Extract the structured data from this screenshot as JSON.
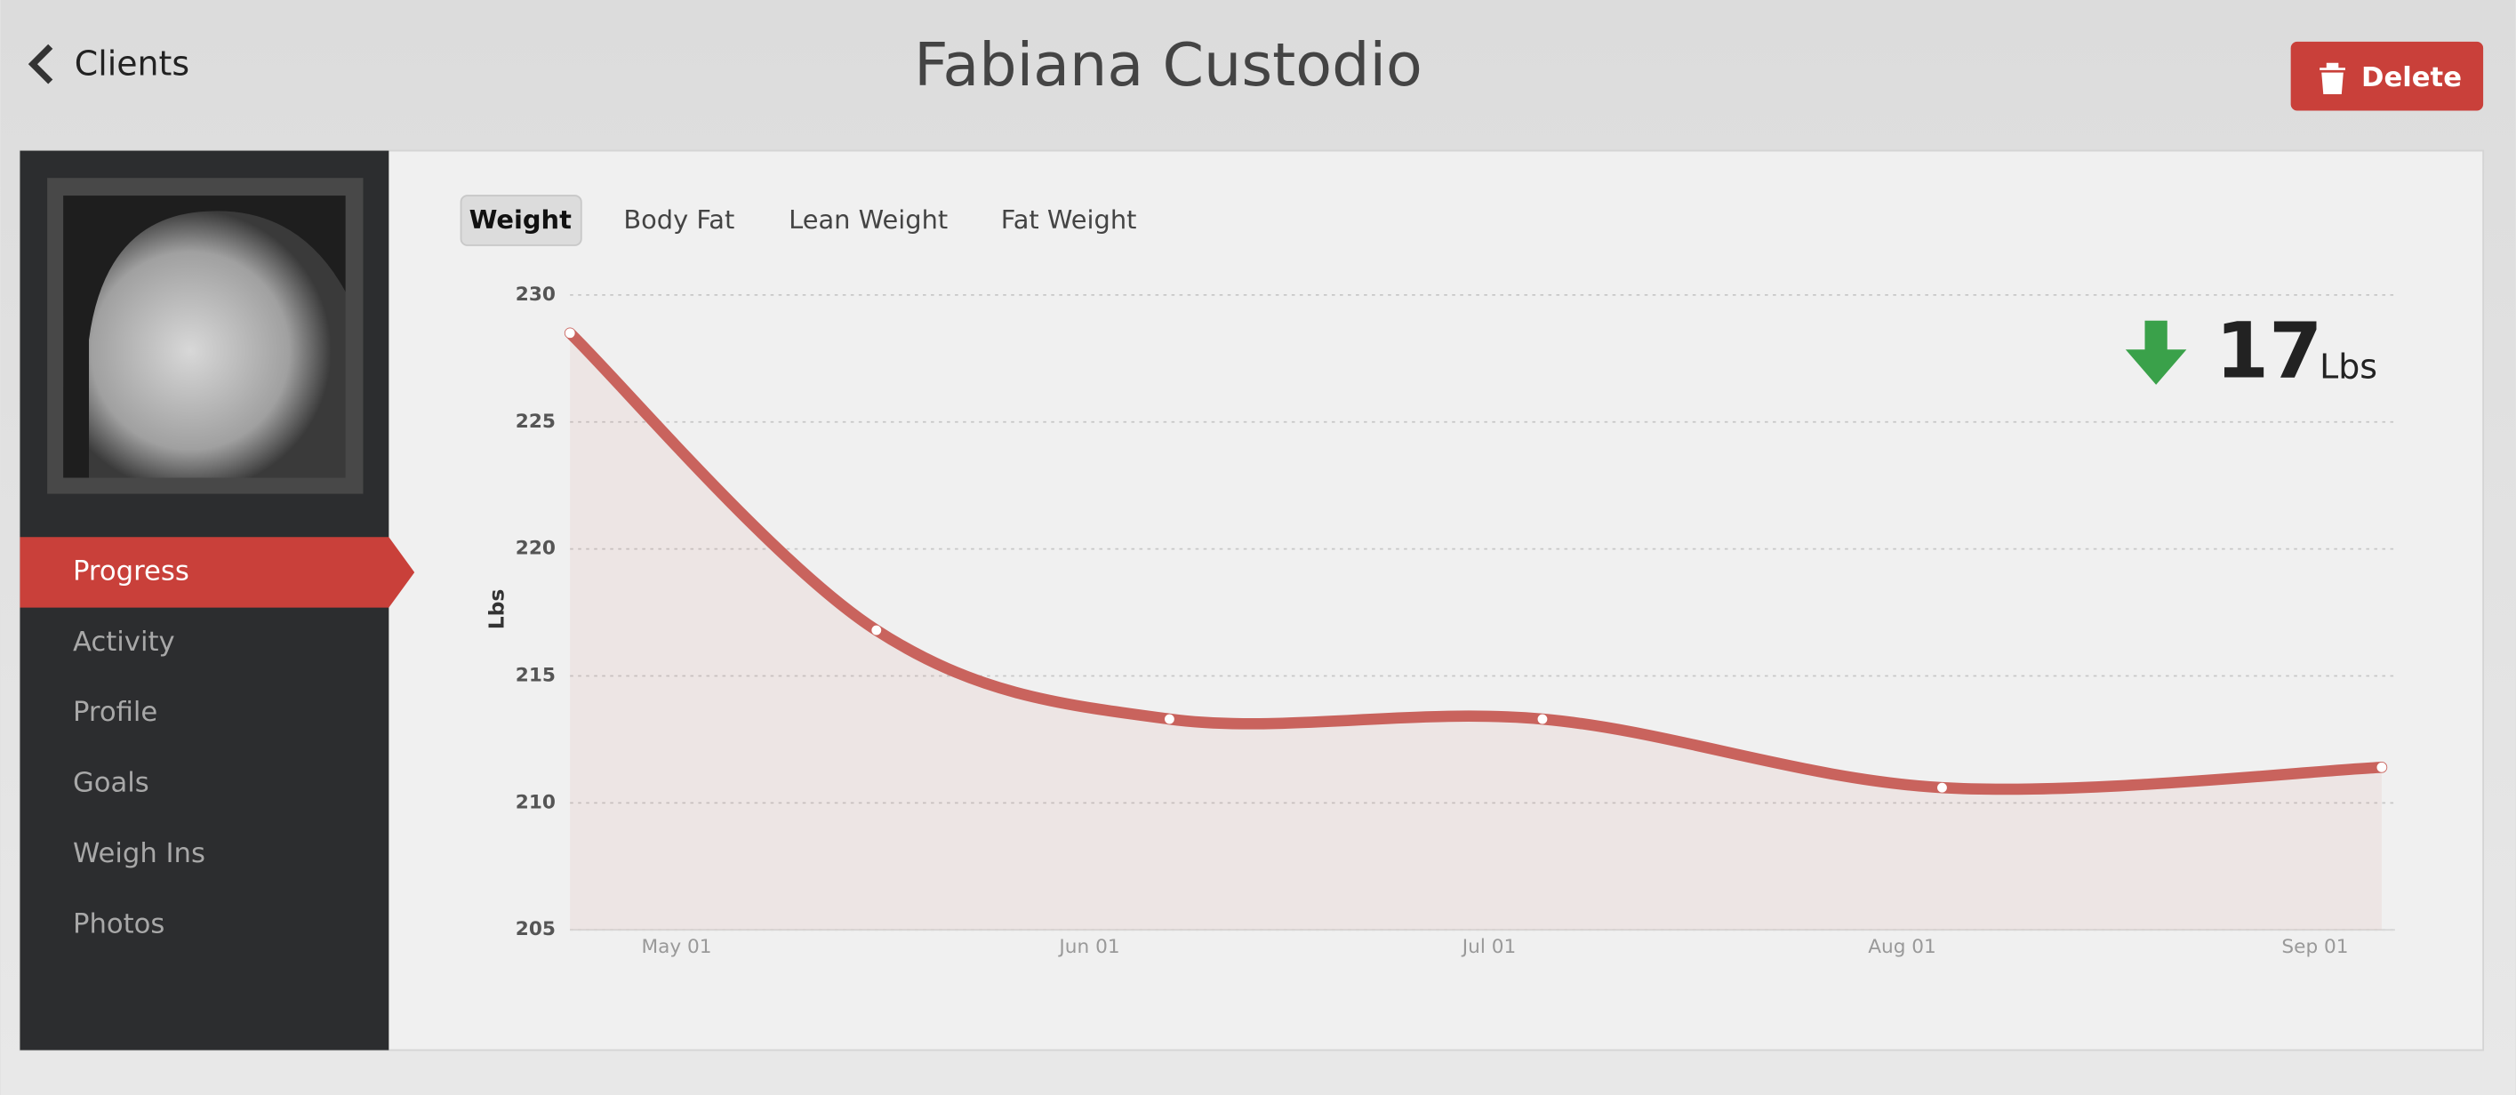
{
  "header": {
    "back": "Clients",
    "title": "Fabiana Custodio",
    "action": "Delete"
  },
  "sidebar": {
    "items": [
      "Progress",
      "Activity",
      "Profile",
      "Goals",
      "Weigh Ins",
      "Photos"
    ],
    "active": 0
  },
  "tabs": {
    "items": [
      "Weight",
      "Body Fat",
      "Lean Weight",
      "Fat Weight"
    ],
    "active": 0
  },
  "change": {
    "direction": "down",
    "value": 17,
    "unit": "Lbs"
  },
  "chart_data": {
    "type": "area",
    "y_label": "Lbs",
    "color": "#c9635d",
    "x": [
      113,
      136,
      158,
      186,
      216,
      249
    ],
    "values": [
      228.5,
      216.8,
      213.3,
      213.3,
      210.6,
      211.4
    ],
    "xlim": [
      113,
      250
    ],
    "xticks": [
      {
        "value": 121,
        "label": "May 01"
      },
      {
        "value": 152,
        "label": "Jun 01"
      },
      {
        "value": 182,
        "label": "Jul 01"
      },
      {
        "value": 213,
        "label": "Aug 01"
      },
      {
        "value": 244,
        "label": "Sep 01"
      }
    ],
    "ylim": [
      205,
      230
    ],
    "yticks": [
      205,
      210,
      215,
      220,
      225,
      230
    ],
    "grid": true
  }
}
